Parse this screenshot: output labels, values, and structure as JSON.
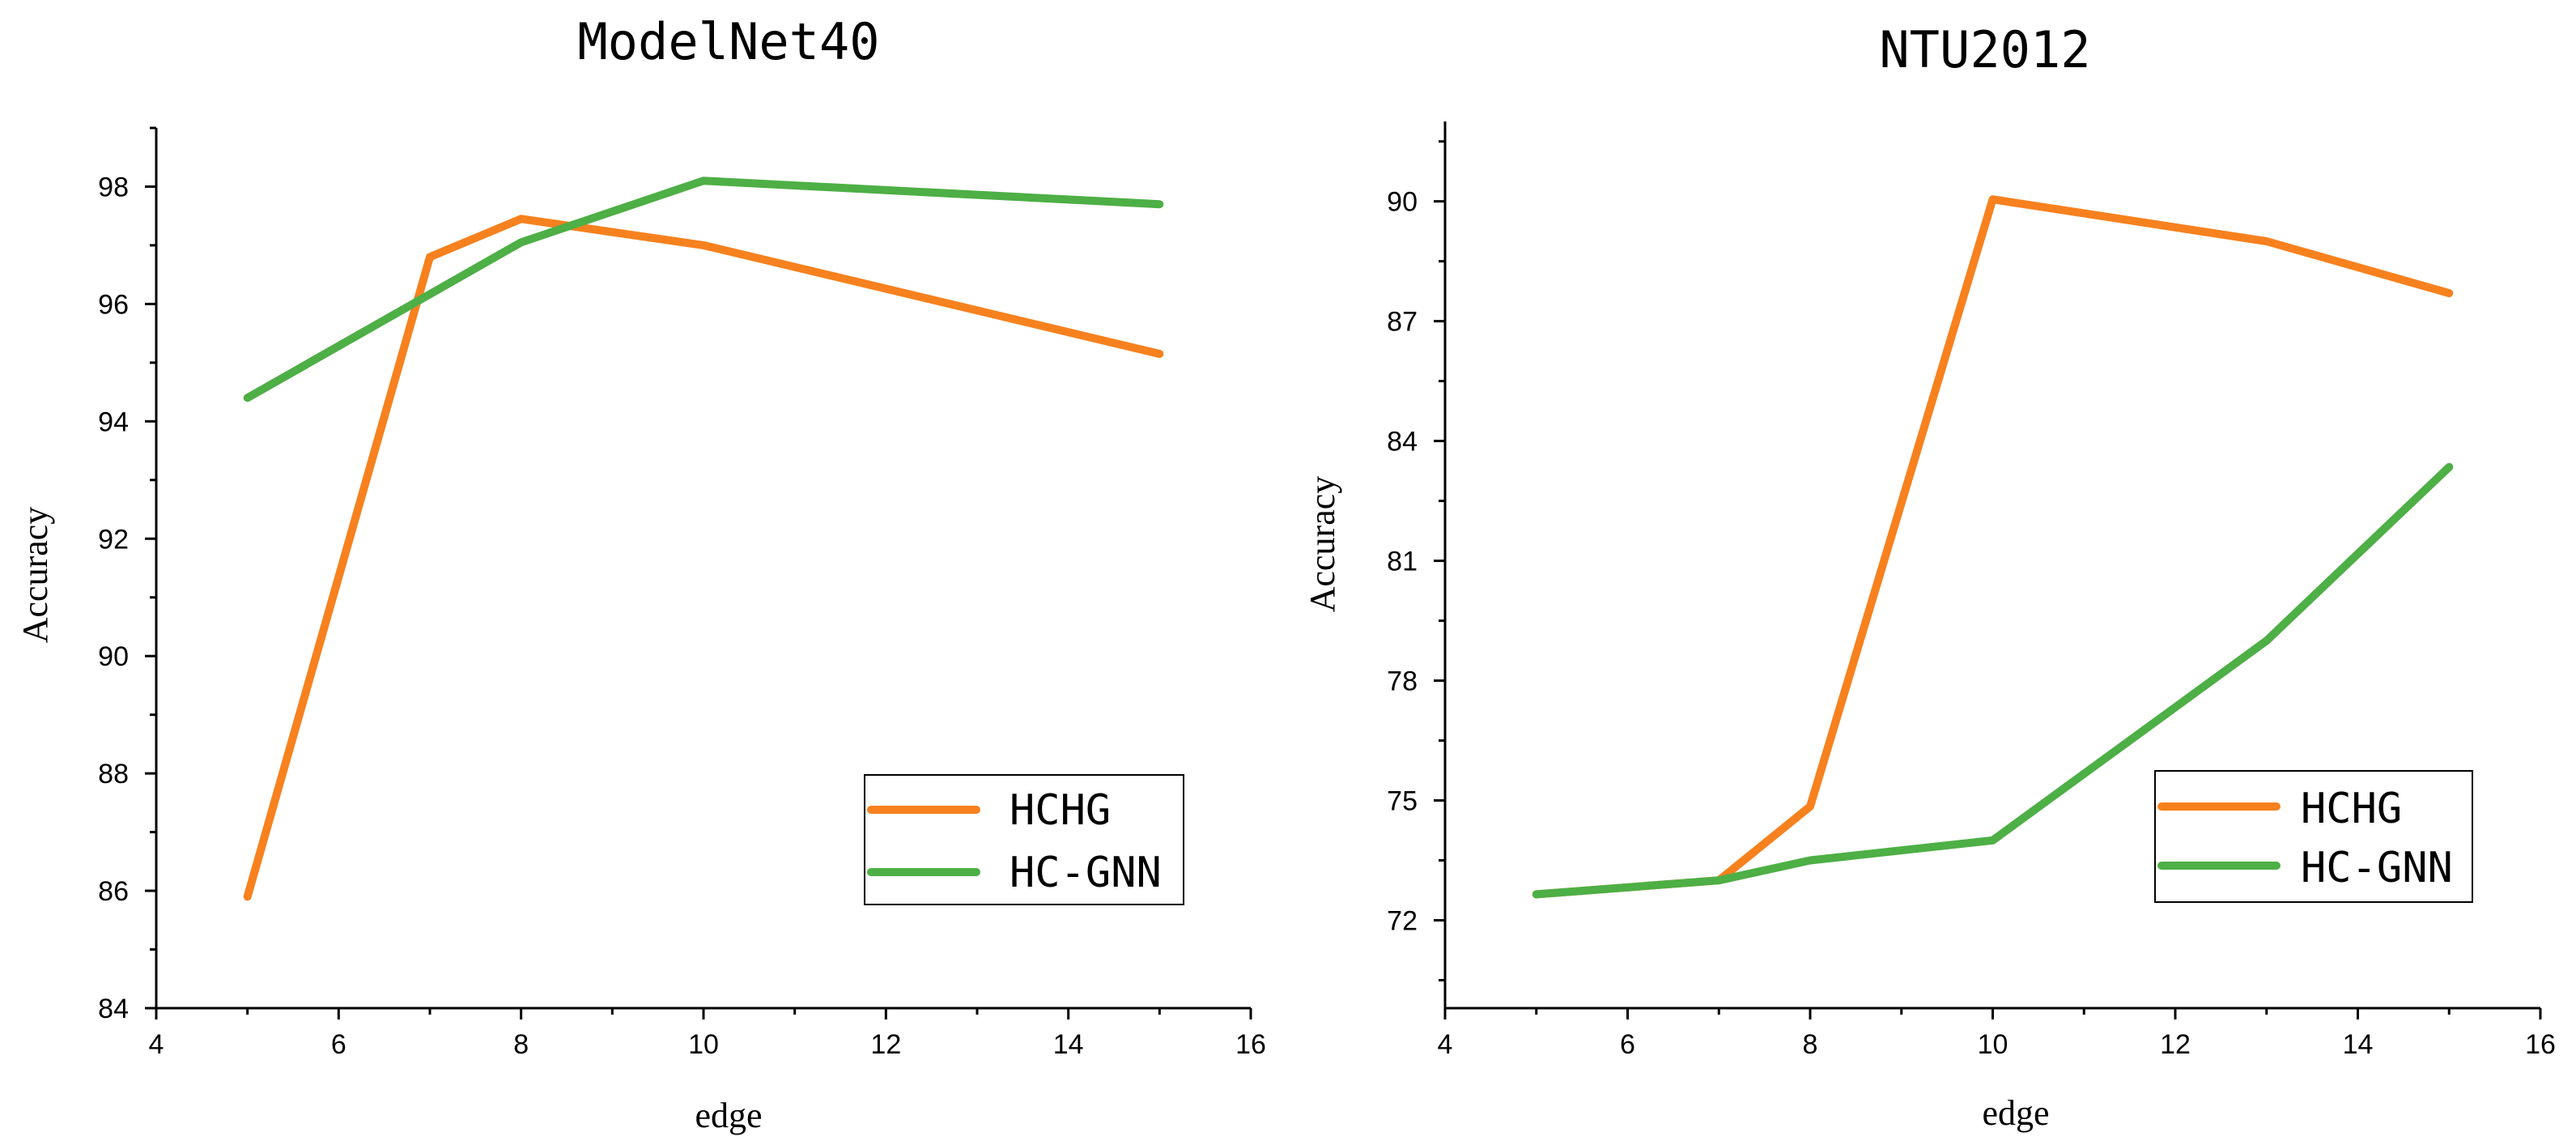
{
  "chart_data": [
    {
      "type": "line",
      "title": "ModelNet40",
      "xlabel": "edge",
      "ylabel": "Accuracy",
      "xlim": [
        4,
        16
      ],
      "ylim": [
        84,
        99
      ],
      "xticks": [
        4,
        6,
        8,
        10,
        12,
        14,
        16
      ],
      "yticks": [
        84,
        86,
        88,
        90,
        92,
        94,
        96,
        98
      ],
      "legend_position": "bottom-right",
      "series": [
        {
          "name": "HCHG",
          "color": "#F7811E",
          "x": [
            5,
            7,
            8,
            10,
            15
          ],
          "y": [
            85.9,
            96.8,
            97.45,
            97.0,
            95.15
          ]
        },
        {
          "name": "HC-GNN",
          "color": "#4DAF45",
          "x": [
            5,
            8,
            10,
            15
          ],
          "y": [
            94.4,
            97.05,
            98.1,
            97.7
          ]
        }
      ]
    },
    {
      "type": "line",
      "title": "NTU2012",
      "xlabel": "edge",
      "ylabel": "Accuracy",
      "xlim": [
        4,
        16
      ],
      "ylim": [
        69.8,
        92
      ],
      "xticks": [
        4,
        6,
        8,
        10,
        12,
        14,
        16
      ],
      "yticks": [
        72,
        75,
        78,
        81,
        84,
        87,
        90
      ],
      "legend_position": "bottom-right",
      "series": [
        {
          "name": "HCHG",
          "color": "#F7811E",
          "x": [
            5,
            7,
            8,
            10,
            13,
            15
          ],
          "y": [
            72.65,
            73.0,
            74.85,
            90.05,
            89.0,
            87.7
          ]
        },
        {
          "name": "HC-GNN",
          "color": "#4DAF45",
          "x": [
            5,
            7,
            8,
            10,
            13,
            15
          ],
          "y": [
            72.65,
            73.0,
            73.5,
            74.0,
            79.0,
            83.35
          ]
        }
      ]
    }
  ]
}
